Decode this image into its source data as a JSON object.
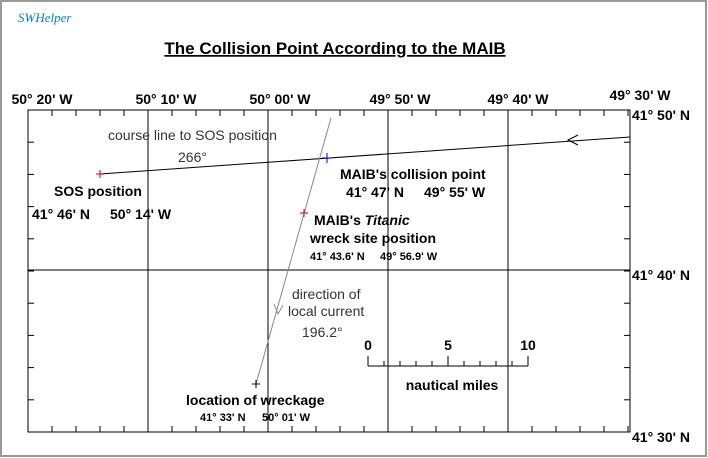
{
  "header": {
    "logo": "SWHelper",
    "title": "The Collision Point According to the MAIB"
  },
  "axes": {
    "longitude_labels": [
      "50° 20' W",
      "50° 10' W",
      "50° 00' W",
      "49° 50' W",
      "49° 40' W",
      "49° 30' W"
    ],
    "latitude_labels": [
      "41° 50' N",
      "41° 40' N",
      "41° 30' N"
    ]
  },
  "course": {
    "label": "course line to SOS position",
    "bearing": "266°"
  },
  "sos": {
    "label": "SOS position",
    "lat": "41° 46' N",
    "lon": "50° 14' W"
  },
  "collision": {
    "label": "MAIB's collision point",
    "lat": "41° 47' N",
    "lon": "49° 55' W"
  },
  "wreck_site": {
    "label_prefix": "MAIB's",
    "label_italic": "Titanic",
    "label_rest": "wreck site position",
    "lat": "41° 43.6' N",
    "lon": "49° 56.9' W"
  },
  "current": {
    "line1": "direction of",
    "line2": "local current",
    "bearing": "196.2°"
  },
  "wreckage": {
    "label": "location of wreckage",
    "lat": "41° 33' N",
    "lon": "50° 01' W"
  },
  "scale": {
    "ticks": [
      "0",
      "5",
      "10"
    ],
    "unit": "nautical miles"
  }
}
